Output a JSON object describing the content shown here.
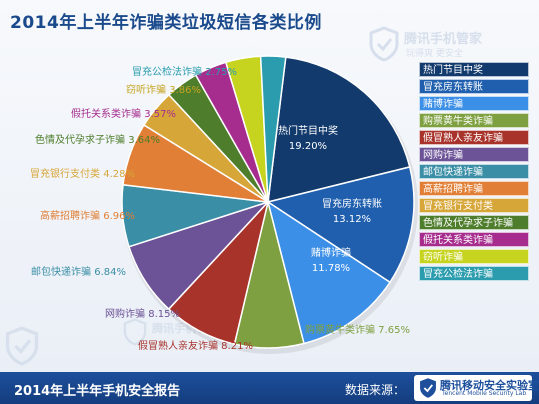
{
  "header": {
    "title": "2014年上半年诈骗类垃圾短信各类比例"
  },
  "watermark": {
    "brand": "腾讯手机管家",
    "slogan": "玩得爽 更安全"
  },
  "footer": {
    "report_title": "2014年上半年手机安全报告",
    "source_label": "数据来源：",
    "lab_name": "腾讯移动安全实验室",
    "lab_name_en": "Tencent Mobile Security Lab"
  },
  "chart_data": {
    "type": "pie",
    "title": "2014年上半年诈骗类垃圾短信各类比例",
    "legend_position": "right",
    "slices": [
      {
        "label": "热门节目中奖",
        "value": 19.2,
        "display": "19.20%",
        "color": "#123a6c"
      },
      {
        "label": "冒充房东转账",
        "value": 13.12,
        "display": "13.12%",
        "color": "#1f5fae"
      },
      {
        "label": "赌博诈骗",
        "value": 11.78,
        "display": "11.78%",
        "color": "#3c8fe6"
      },
      {
        "label": "购票黄牛类诈骗",
        "value": 7.65,
        "display": "7.65%",
        "color": "#7ea040"
      },
      {
        "label": "假冒熟人亲友诈骗",
        "value": 8.21,
        "display": "8.21%",
        "color": "#a8332b"
      },
      {
        "label": "网购诈骗",
        "value": 8.15,
        "display": "8.15%",
        "color": "#6c5297"
      },
      {
        "label": "邮包快递诈骗",
        "value": 6.84,
        "display": "6.84%",
        "color": "#3a8ea6"
      },
      {
        "label": "高薪招聘诈骗",
        "value": 6.96,
        "display": "6.96%",
        "color": "#e07f35"
      },
      {
        "label": "冒充银行支付类",
        "value": 4.28,
        "display": "4.28%",
        "color": "#d7a638"
      },
      {
        "label": "色情及代孕求子诈骗",
        "value": 3.64,
        "display": "3.64%",
        "color": "#4e7d2c"
      },
      {
        "label": "假托关系类诈骗",
        "value": 3.57,
        "display": "3.57%",
        "color": "#a62d8e"
      },
      {
        "label": "窃听诈骗",
        "value": 3.86,
        "display": "3.86%",
        "color": "#c6d31f"
      },
      {
        "label": "冒充公检法诈骗",
        "value": 2.75,
        "display": "2.75%",
        "color": "#2a9cae"
      }
    ],
    "outside_label_colors": {
      "购票黄牛类诈骗": "#7ea040",
      "假冒熟人亲友诈骗": "#a8332b",
      "网购诈骗": "#6c5297",
      "邮包快递诈骗": "#3a8ea6",
      "高薪招聘诈骗": "#e07f35",
      "冒充银行支付类": "#d7a638",
      "色情及代孕求子诈骗": "#4e7d2c",
      "假托关系类诈骗": "#a62d8e",
      "窃听诈骗": "#c6a41f",
      "冒充公检法诈骗": "#2a9cae"
    }
  }
}
